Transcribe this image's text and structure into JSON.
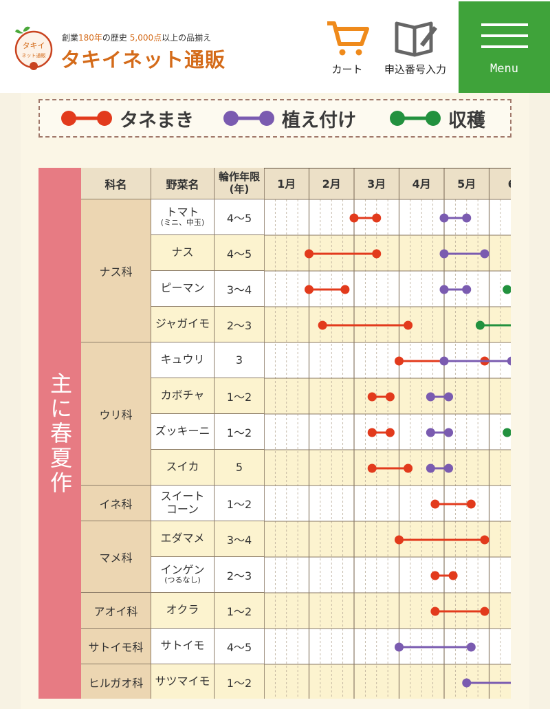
{
  "header": {
    "logo_small_prefix": "創業",
    "logo_small_accent1": "180年",
    "logo_small_mid": "の歴史 ",
    "logo_small_accent2": "5,000点",
    "logo_small_suffix": "以上の品揃え",
    "logo_title": "タキイネット通販",
    "logo_badge_top": "タキイ",
    "logo_badge_bottom": "ネット通販",
    "cart_label": "カート",
    "order_label": "申込番号入力",
    "menu_label": "Menu"
  },
  "legend": [
    {
      "label": "タネまき",
      "color": "#e23a1c"
    },
    {
      "label": "植え付け",
      "color": "#7a5bb0"
    },
    {
      "label": "収穫",
      "color": "#22913e"
    }
  ],
  "table": {
    "season_label": "主に春夏作",
    "headers": {
      "family": "科名",
      "vegetable": "野菜名",
      "rotation": "輪作年限(年)",
      "rotation_line1": "輪作年限",
      "rotation_line2": "(年)"
    },
    "months": [
      "1月",
      "2月",
      "3月",
      "4月",
      "5月",
      "6"
    ],
    "families": [
      {
        "name": "ナス科",
        "rows": 4
      },
      {
        "name": "ウリ科",
        "rows": 4
      },
      {
        "name": "イネ科",
        "rows": 1
      },
      {
        "name": "マメ科",
        "rows": 2
      },
      {
        "name": "アオイ科",
        "rows": 1
      },
      {
        "name": "サトイモ科",
        "rows": 1
      },
      {
        "name": "ヒルガオ科",
        "rows": 1
      }
    ],
    "rows": [
      {
        "name": "トマト",
        "sub": "(ミニ、中玉)",
        "years": "4〜5"
      },
      {
        "name": "ナス",
        "sub": "",
        "years": "4〜5"
      },
      {
        "name": "ピーマン",
        "sub": "",
        "years": "3〜4"
      },
      {
        "name": "ジャガイモ",
        "sub": "",
        "years": "2〜3"
      },
      {
        "name": "キュウリ",
        "sub": "",
        "years": "3"
      },
      {
        "name": "カボチャ",
        "sub": "",
        "years": "1〜2"
      },
      {
        "name": "ズッキーニ",
        "sub": "",
        "years": "1〜2"
      },
      {
        "name": "スイカ",
        "sub": "",
        "years": "5"
      },
      {
        "name": "スイート",
        "sub": "コーン",
        "years": "1〜2"
      },
      {
        "name": "エダマメ",
        "sub": "",
        "years": "3〜4"
      },
      {
        "name": "インゲン",
        "sub": "(つるなし)",
        "years": "2〜3"
      },
      {
        "name": "オクラ",
        "sub": "",
        "years": "1〜2"
      },
      {
        "name": "サトイモ",
        "sub": "",
        "years": "4〜5"
      },
      {
        "name": "サツマイモ",
        "sub": "",
        "years": "1〜2"
      }
    ]
  },
  "chart_data": {
    "type": "table",
    "month_start": 1,
    "month_end": 6,
    "periods": [
      {
        "row": 0,
        "kind": "sow",
        "from": 3.0,
        "to": 3.5
      },
      {
        "row": 0,
        "kind": "plant",
        "from": 5.0,
        "to": 5.5
      },
      {
        "row": 1,
        "kind": "sow",
        "from": 2.0,
        "to": 3.5
      },
      {
        "row": 1,
        "kind": "plant",
        "from": 5.0,
        "to": 5.9
      },
      {
        "row": 2,
        "kind": "sow",
        "from": 2.0,
        "to": 2.8
      },
      {
        "row": 2,
        "kind": "plant",
        "from": 5.0,
        "to": 5.5
      },
      {
        "row": 2,
        "kind": "harvest",
        "from": 6.4,
        "to": 6.9
      },
      {
        "row": 3,
        "kind": "sow",
        "from": 2.3,
        "to": 4.2
      },
      {
        "row": 3,
        "kind": "harvest",
        "from": 5.8,
        "to": 6.9
      },
      {
        "row": 4,
        "kind": "sow",
        "from": 4.0,
        "to": 5.9
      },
      {
        "row": 4,
        "kind": "plant",
        "from": 5.0,
        "to": 6.5
      },
      {
        "row": 5,
        "kind": "sow",
        "from": 3.4,
        "to": 3.8
      },
      {
        "row": 5,
        "kind": "plant",
        "from": 4.7,
        "to": 5.1
      },
      {
        "row": 6,
        "kind": "sow",
        "from": 3.4,
        "to": 3.8
      },
      {
        "row": 6,
        "kind": "plant",
        "from": 4.7,
        "to": 5.1
      },
      {
        "row": 6,
        "kind": "harvest",
        "from": 6.4,
        "to": 6.9
      },
      {
        "row": 7,
        "kind": "sow",
        "from": 3.4,
        "to": 4.2
      },
      {
        "row": 7,
        "kind": "plant",
        "from": 4.7,
        "to": 5.1
      },
      {
        "row": 8,
        "kind": "sow",
        "from": 4.8,
        "to": 5.6
      },
      {
        "row": 9,
        "kind": "sow",
        "from": 4.0,
        "to": 5.9
      },
      {
        "row": 10,
        "kind": "sow",
        "from": 4.8,
        "to": 5.2
      },
      {
        "row": 11,
        "kind": "sow",
        "from": 4.8,
        "to": 5.9
      },
      {
        "row": 12,
        "kind": "plant",
        "from": 4.0,
        "to": 5.6
      },
      {
        "row": 13,
        "kind": "plant",
        "from": 5.5,
        "to": 6.9
      }
    ]
  }
}
